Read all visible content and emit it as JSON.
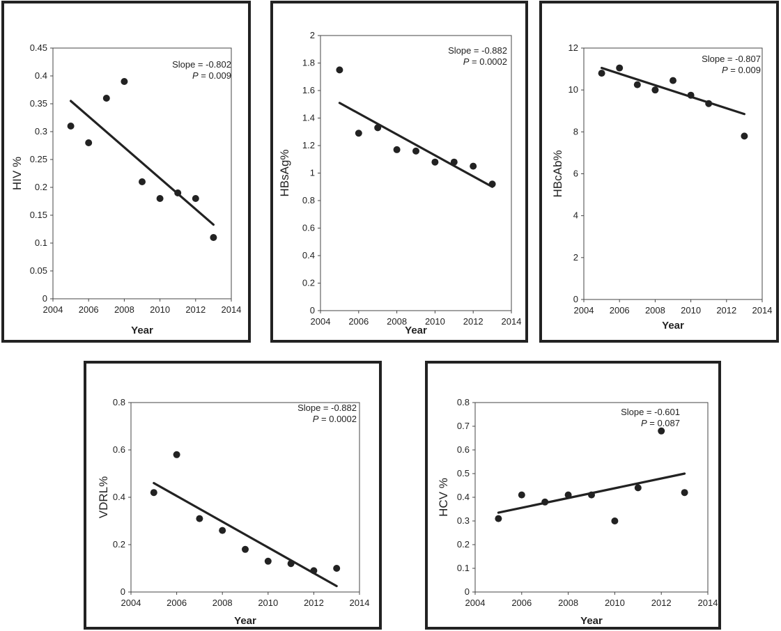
{
  "chart_data": [
    {
      "type": "scatter",
      "id": "hiv",
      "xlabel": "Year",
      "ylabel": "HIV %",
      "xlim": [
        2004,
        2014
      ],
      "ylim": [
        0,
        0.45
      ],
      "xticks": [
        2004,
        2006,
        2008,
        2010,
        2012,
        2014
      ],
      "yticks": [
        0,
        0.05,
        0.1,
        0.15,
        0.2,
        0.25,
        0.3,
        0.35,
        0.4,
        0.45
      ],
      "points": [
        [
          2005,
          0.31
        ],
        [
          2006,
          0.28
        ],
        [
          2007,
          0.36
        ],
        [
          2008,
          0.39
        ],
        [
          2009,
          0.21
        ],
        [
          2010,
          0.18
        ],
        [
          2011,
          0.19
        ],
        [
          2012,
          0.18
        ],
        [
          2013,
          0.11
        ]
      ],
      "trend": [
        [
          2005,
          0.355
        ],
        [
          2013,
          0.133
        ]
      ],
      "annotation": {
        "slope_label": "Slope = -0.802",
        "p_label": "P",
        "p_value": " = 0.009"
      },
      "grid": false
    },
    {
      "type": "scatter",
      "id": "hbsag",
      "xlabel": "Year",
      "ylabel": "HBsAg%",
      "xlim": [
        2004,
        2014
      ],
      "ylim": [
        0,
        2
      ],
      "xticks": [
        2004,
        2006,
        2008,
        2010,
        2012,
        2014
      ],
      "yticks": [
        0,
        0.2,
        0.4,
        0.6,
        0.8,
        1,
        1.2,
        1.4,
        1.6,
        1.8,
        2
      ],
      "points": [
        [
          2005,
          1.75
        ],
        [
          2006,
          1.29
        ],
        [
          2007,
          1.33
        ],
        [
          2008,
          1.17
        ],
        [
          2009,
          1.16
        ],
        [
          2010,
          1.08
        ],
        [
          2011,
          1.08
        ],
        [
          2012,
          1.05
        ],
        [
          2013,
          0.92
        ]
      ],
      "trend": [
        [
          2005,
          1.51
        ],
        [
          2013,
          0.9
        ]
      ],
      "annotation": {
        "slope_label": "Slope = -0.882",
        "p_label": "P",
        "p_value": " = 0.0002"
      },
      "grid": false
    },
    {
      "type": "scatter",
      "id": "hbcab",
      "xlabel": "Year",
      "ylabel": "HBcAb%",
      "xlim": [
        2004,
        2014
      ],
      "ylim": [
        0,
        12
      ],
      "xticks": [
        2004,
        2006,
        2008,
        2010,
        2012,
        2014
      ],
      "yticks": [
        0,
        2,
        4,
        6,
        8,
        10,
        12
      ],
      "points": [
        [
          2005,
          10.8
        ],
        [
          2006,
          11.05
        ],
        [
          2007,
          10.25
        ],
        [
          2008,
          10.0
        ],
        [
          2009,
          10.45
        ],
        [
          2010,
          9.75
        ],
        [
          2011,
          9.35
        ],
        [
          2013,
          7.8
        ]
      ],
      "trend": [
        [
          2005,
          11.05
        ],
        [
          2013,
          8.85
        ]
      ],
      "annotation": {
        "slope_label": "Slope = -0.807",
        "p_label": "P",
        "p_value": " = 0.009"
      },
      "grid": false
    },
    {
      "type": "scatter",
      "id": "vdrl",
      "xlabel": "Year",
      "ylabel": "VDRL%",
      "xlim": [
        2004,
        2014
      ],
      "ylim": [
        0,
        0.8
      ],
      "xticks": [
        2004,
        2006,
        2008,
        2010,
        2012,
        2014
      ],
      "yticks": [
        0,
        0.2,
        0.4,
        0.6,
        0.8
      ],
      "points": [
        [
          2005,
          0.42
        ],
        [
          2006,
          0.58
        ],
        [
          2007,
          0.31
        ],
        [
          2008,
          0.26
        ],
        [
          2009,
          0.18
        ],
        [
          2010,
          0.13
        ],
        [
          2011,
          0.12
        ],
        [
          2012,
          0.09
        ],
        [
          2013,
          0.1
        ]
      ],
      "trend": [
        [
          2005,
          0.46
        ],
        [
          2013,
          0.025
        ]
      ],
      "annotation": {
        "slope_label": "Slope = -0.882",
        "p_label": "P",
        "p_value": " = 0.0002"
      },
      "grid": false
    },
    {
      "type": "scatter",
      "id": "hcv",
      "xlabel": "Year",
      "ylabel": "HCV %",
      "xlim": [
        2004,
        2014
      ],
      "ylim": [
        0,
        0.8
      ],
      "xticks": [
        2004,
        2006,
        2008,
        2010,
        2012,
        2014
      ],
      "yticks": [
        0,
        0.1,
        0.2,
        0.3,
        0.4,
        0.5,
        0.6,
        0.7,
        0.8
      ],
      "points": [
        [
          2005,
          0.31
        ],
        [
          2006,
          0.41
        ],
        [
          2007,
          0.38
        ],
        [
          2008,
          0.41
        ],
        [
          2009,
          0.41
        ],
        [
          2010,
          0.3
        ],
        [
          2011,
          0.44
        ],
        [
          2012,
          0.68
        ],
        [
          2013,
          0.42
        ]
      ],
      "trend": [
        [
          2005,
          0.335
        ],
        [
          2013,
          0.5
        ]
      ],
      "annotation": {
        "slope_label": "Slope = -0.601",
        "p_label": "P",
        "p_value": " = 0.087"
      },
      "grid": false
    }
  ]
}
